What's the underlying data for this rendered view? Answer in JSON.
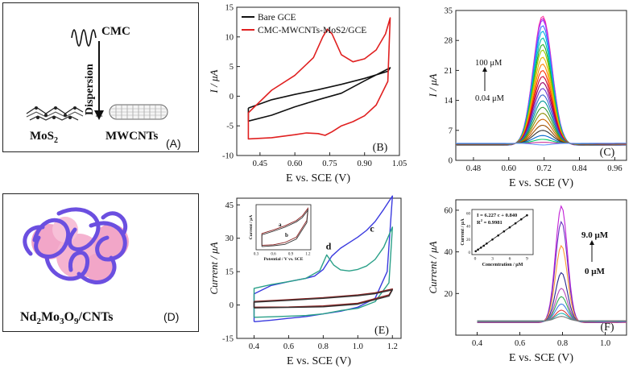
{
  "panel_a": {
    "letter": "(A)",
    "cmc": "CMC",
    "dispersion": "Dispersion",
    "plus": "+",
    "mos2": "MoS",
    "mos2_sub": "2",
    "mwcnts": "MWCNTs"
  },
  "panel_d": {
    "letter": "(D)",
    "formula": "Nd",
    "f_sub1": "2",
    "f_mid1": "Mo",
    "f_sub2": "3",
    "f_mid2": "O",
    "f_sub3": "9",
    "f_tail": "/CNTs"
  },
  "chart_data": [
    {
      "panel": "B",
      "type": "line",
      "letter": "(B)",
      "xlabel": "E vs. SCE (V)",
      "ylabel": "I / μA",
      "xlim": [
        0.35,
        1.05
      ],
      "ylim": [
        -10,
        15
      ],
      "xticks": [
        "0.45",
        "0.60",
        "0.75",
        "0.90",
        "1.05"
      ],
      "yticks": [
        "-10",
        "-5",
        "0",
        "5",
        "10",
        "15"
      ],
      "legend": [
        "Bare GCE",
        "CMC-MWCNTs-MoS2/GCE"
      ],
      "legend_colors": [
        "#111111",
        "#e02020"
      ],
      "series": [
        {
          "name": "Bare GCE",
          "color": "#111111",
          "x": [
            0.4,
            0.5,
            0.6,
            0.7,
            0.8,
            0.9,
            1.0,
            1.01,
            0.9,
            0.8,
            0.7,
            0.6,
            0.5,
            0.4,
            0.4
          ],
          "y": [
            -2.0,
            -0.6,
            0.3,
            1.1,
            2.0,
            3.0,
            4.2,
            4.8,
            2.6,
            0.5,
            -0.6,
            -1.8,
            -3.2,
            -4.2,
            -2.0
          ]
        },
        {
          "name": "CMC-MWCNTs-MoS2/GCE",
          "color": "#e02020",
          "x": [
            0.4,
            0.5,
            0.6,
            0.68,
            0.72,
            0.74,
            0.76,
            0.8,
            0.85,
            0.9,
            0.95,
            0.99,
            1.01,
            1.0,
            0.95,
            0.9,
            0.85,
            0.8,
            0.76,
            0.73,
            0.7,
            0.65,
            0.6,
            0.5,
            0.4,
            0.4
          ],
          "y": [
            -2.8,
            1.0,
            3.5,
            6.5,
            10.0,
            11.3,
            10.5,
            7.0,
            5.8,
            6.3,
            7.8,
            10.5,
            13.2,
            2.5,
            -1.5,
            -3.3,
            -4.3,
            -5.0,
            -6.0,
            -6.6,
            -6.3,
            -6.2,
            -6.5,
            -7.0,
            -7.2,
            -2.8
          ]
        }
      ]
    },
    {
      "panel": "C",
      "type": "line",
      "letter": "(C)",
      "xlabel": "E vs. SCE (V)",
      "ylabel": "I / μA",
      "xlim": [
        0.42,
        1.0
      ],
      "ylim": [
        0,
        35
      ],
      "xticks": [
        "0.48",
        "0.60",
        "0.72",
        "0.84",
        "0.96"
      ],
      "yticks": [
        "0",
        "7",
        "14",
        "21",
        "28",
        "35"
      ],
      "annotation_high": "100 μM",
      "annotation_low": "0.04 μM",
      "peak_potential": 0.715,
      "baseline": 3.5,
      "peak_heights": [
        33.7,
        33.2,
        32.8,
        31.5,
        30.2,
        28.6,
        27.1,
        25.8,
        24.1,
        22.5,
        21.0,
        19.6,
        18.2,
        16.8,
        15.3,
        13.9,
        12.4,
        11.0,
        9.6,
        8.2,
        7.0,
        5.8,
        4.9,
        4.2,
        3.6
      ],
      "colors": [
        "#ff3fa0",
        "#d11ad1",
        "#9f3fff",
        "#3f6fff",
        "#00b3e6",
        "#00c2a8",
        "#22aa22",
        "#99cc00",
        "#e6b800",
        "#ff8800",
        "#ff3300",
        "#cc0033",
        "#990066",
        "#6633cc",
        "#3366cc",
        "#009999",
        "#339933",
        "#8c8c00",
        "#cc6600",
        "#994d00",
        "#333333",
        "#0066cc",
        "#00cc66",
        "#cc3399",
        "#6699ff"
      ]
    },
    {
      "panel": "E",
      "type": "line",
      "letter": "(E)",
      "xlabel": "E vs. SCE (V)",
      "ylabel": "Current / μA",
      "xlim": [
        0.3,
        1.25
      ],
      "ylim": [
        -15,
        48
      ],
      "xticks": [
        "0.4",
        "0.6",
        "0.8",
        "1.0",
        "1.2"
      ],
      "yticks": [
        "-15",
        "0",
        "15",
        "30",
        "45"
      ],
      "label_c": "c",
      "label_d": "d",
      "series": [
        {
          "name": "c",
          "color": "#3a3adf",
          "x": [
            0.4,
            0.4,
            0.5,
            0.6,
            0.7,
            0.75,
            0.8,
            0.85,
            0.9,
            0.95,
            1.0,
            1.05,
            1.1,
            1.15,
            1.2,
            1.17,
            1.1,
            1.0,
            0.9,
            0.8,
            0.7,
            0.6,
            0.5,
            0.4
          ],
          "y": [
            -7.5,
            5.0,
            8.8,
            10.5,
            12.0,
            13.0,
            16.0,
            22.0,
            25.5,
            28.0,
            30.5,
            33.5,
            37.5,
            43.0,
            49.0,
            15.0,
            3.0,
            -1.0,
            -2.8,
            -4.0,
            -5.2,
            -6.0,
            -6.8,
            -7.5
          ]
        },
        {
          "name": "d",
          "color": "#2aa088",
          "x": [
            0.4,
            0.4,
            0.5,
            0.6,
            0.7,
            0.78,
            0.82,
            0.86,
            0.9,
            0.95,
            1.0,
            1.05,
            1.1,
            1.15,
            1.2,
            1.18,
            1.1,
            1.0,
            0.9,
            0.8,
            0.7,
            0.6,
            0.5,
            0.4
          ],
          "y": [
            -5.5,
            7.5,
            9.2,
            10.5,
            12.0,
            15.5,
            22.5,
            18.0,
            15.8,
            15.3,
            16.0,
            17.5,
            20.5,
            26.0,
            35.0,
            10.0,
            1.5,
            -1.5,
            -2.5,
            -4.0,
            -4.7,
            -5.0,
            -5.3,
            -5.5
          ]
        },
        {
          "name": "a",
          "color": "#8a1f1f",
          "x": [
            0.4,
            0.4,
            0.6,
            0.8,
            1.0,
            1.1,
            1.2,
            1.18,
            1.0,
            0.8,
            0.6,
            0.4
          ],
          "y": [
            -1.0,
            1.6,
            2.4,
            3.3,
            4.5,
            5.5,
            7.2,
            4.5,
            0.8,
            -0.4,
            -0.9,
            -1.0
          ]
        },
        {
          "name": "b",
          "color": "#333333",
          "x": [
            0.4,
            0.4,
            0.6,
            0.8,
            1.0,
            1.1,
            1.2,
            1.18,
            1.0,
            0.8,
            0.6,
            0.4
          ],
          "y": [
            -1.3,
            1.3,
            2.1,
            3.0,
            4.2,
            5.1,
            6.8,
            4.0,
            0.4,
            -0.8,
            -1.1,
            -1.3
          ]
        }
      ],
      "inset": {
        "xlabel": "Potential / V vs. SCE",
        "ylabel": "Current / μA",
        "xticks": [
          "0.3",
          "0.6",
          "0.9",
          "1.2"
        ],
        "label_a": "a",
        "label_b": "b"
      }
    },
    {
      "panel": "F",
      "type": "line",
      "letter": "(F)",
      "xlabel": "E vs. SCE (V)",
      "ylabel": "Current / μA",
      "xlim": [
        0.3,
        1.1
      ],
      "ylim": [
        0,
        65
      ],
      "xticks": [
        "0.4",
        "0.6",
        "0.8",
        "1.0"
      ],
      "yticks": [
        "20",
        "40",
        "60"
      ],
      "annotation_high": "9.0 μM",
      "annotation_low": "0 μM",
      "peak_potential": 0.795,
      "peak_heights": [
        62.0,
        54.5,
        43.0,
        30.0,
        22.5,
        18.5,
        15.0,
        12.0,
        10.5,
        9.0
      ],
      "colors": [
        "#c21fd6",
        "#6a2fc2",
        "#ff9933",
        "#2a2a8c",
        "#b84ab8",
        "#33aa55",
        "#3f7fe6",
        "#e04040",
        "#1fb3b3",
        "#777777"
      ],
      "inset": {
        "equation": "I = 6.227 c + 0.840",
        "r2_prefix": "R",
        "r2_sup": "2",
        "r2_value": " = 0.9981",
        "xlabel": "Concentration / μM",
        "ylabel": "Current / μA",
        "xticks": [
          "0",
          "3",
          "6",
          "9"
        ],
        "yticks": [
          "0",
          "20",
          "40",
          "60"
        ],
        "points_x": [
          0.1,
          0.5,
          1.0,
          1.5,
          2.0,
          3.0,
          4.0,
          5.0,
          6.0,
          7.0,
          8.0,
          9.0
        ],
        "points_y": [
          1.5,
          3.9,
          6.9,
          9.9,
          13.3,
          19.5,
          25.7,
          32.0,
          38.2,
          44.4,
          50.6,
          56.8
        ]
      }
    }
  ]
}
